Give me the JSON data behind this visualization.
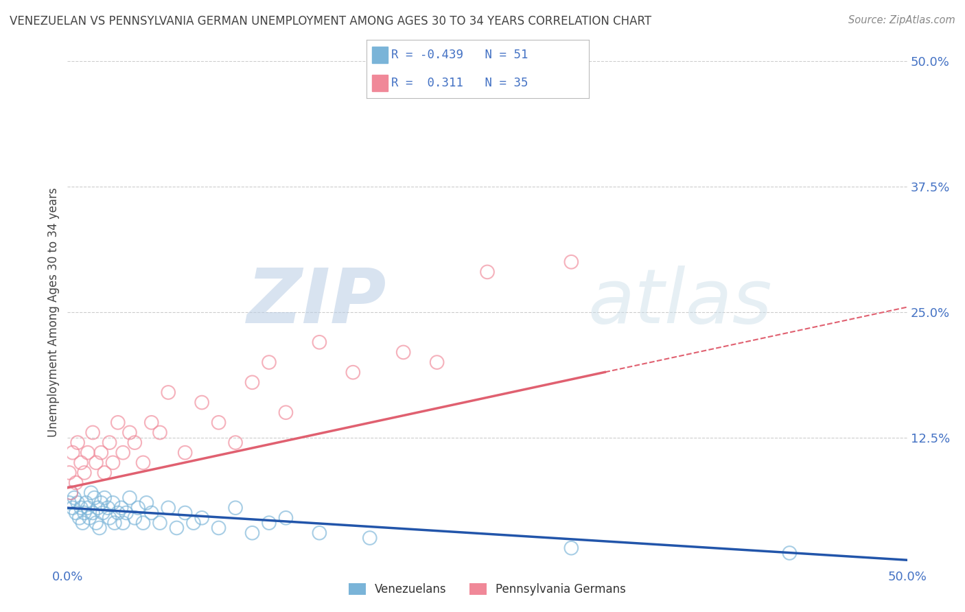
{
  "title": "VENEZUELAN VS PENNSYLVANIA GERMAN UNEMPLOYMENT AMONG AGES 30 TO 34 YEARS CORRELATION CHART",
  "source": "Source: ZipAtlas.com",
  "ylabel": "Unemployment Among Ages 30 to 34 years",
  "ytick_values": [
    0,
    0.125,
    0.25,
    0.375,
    0.5
  ],
  "xrange": [
    0,
    0.5
  ],
  "yrange": [
    0,
    0.5
  ],
  "venezuelan_color": "#7ab4d8",
  "penn_german_color": "#f08898",
  "venezuelan_R": -0.439,
  "venezuelan_N": 51,
  "penn_german_R": 0.311,
  "penn_german_N": 35,
  "watermark_zip": "ZIP",
  "watermark_atlas": "atlas",
  "background_color": "#ffffff",
  "grid_color": "#cccccc",
  "title_color": "#444444",
  "axis_color": "#4472c4",
  "ven_trend_color": "#2255aa",
  "pg_trend_color": "#e06070",
  "ven_trend_start_y": 0.055,
  "ven_trend_end_y": 0.003,
  "pg_trend_start_y": 0.075,
  "pg_trend_end_y": 0.255,
  "venezuelan_x": [
    0.001,
    0.002,
    0.003,
    0.004,
    0.005,
    0.006,
    0.007,
    0.008,
    0.009,
    0.01,
    0.011,
    0.012,
    0.013,
    0.014,
    0.015,
    0.016,
    0.017,
    0.018,
    0.019,
    0.02,
    0.021,
    0.022,
    0.024,
    0.025,
    0.027,
    0.028,
    0.03,
    0.032,
    0.033,
    0.035,
    0.037,
    0.04,
    0.042,
    0.045,
    0.047,
    0.05,
    0.055,
    0.06,
    0.065,
    0.07,
    0.075,
    0.08,
    0.09,
    0.1,
    0.11,
    0.12,
    0.13,
    0.15,
    0.18,
    0.3,
    0.43
  ],
  "venezuelan_y": [
    0.06,
    0.07,
    0.055,
    0.065,
    0.05,
    0.06,
    0.045,
    0.055,
    0.04,
    0.05,
    0.06,
    0.055,
    0.045,
    0.07,
    0.05,
    0.065,
    0.04,
    0.055,
    0.035,
    0.06,
    0.05,
    0.065,
    0.055,
    0.045,
    0.06,
    0.04,
    0.05,
    0.055,
    0.04,
    0.05,
    0.065,
    0.045,
    0.055,
    0.04,
    0.06,
    0.05,
    0.04,
    0.055,
    0.035,
    0.05,
    0.04,
    0.045,
    0.035,
    0.055,
    0.03,
    0.04,
    0.045,
    0.03,
    0.025,
    0.015,
    0.01
  ],
  "penn_german_x": [
    0.001,
    0.002,
    0.003,
    0.005,
    0.006,
    0.008,
    0.01,
    0.012,
    0.015,
    0.017,
    0.02,
    0.022,
    0.025,
    0.027,
    0.03,
    0.033,
    0.037,
    0.04,
    0.045,
    0.05,
    0.055,
    0.06,
    0.07,
    0.08,
    0.09,
    0.1,
    0.11,
    0.12,
    0.13,
    0.15,
    0.17,
    0.2,
    0.22,
    0.25,
    0.3
  ],
  "penn_german_y": [
    0.09,
    0.07,
    0.11,
    0.08,
    0.12,
    0.1,
    0.09,
    0.11,
    0.13,
    0.1,
    0.11,
    0.09,
    0.12,
    0.1,
    0.14,
    0.11,
    0.13,
    0.12,
    0.1,
    0.14,
    0.13,
    0.17,
    0.11,
    0.16,
    0.14,
    0.12,
    0.18,
    0.2,
    0.15,
    0.22,
    0.19,
    0.21,
    0.2,
    0.29,
    0.3
  ]
}
